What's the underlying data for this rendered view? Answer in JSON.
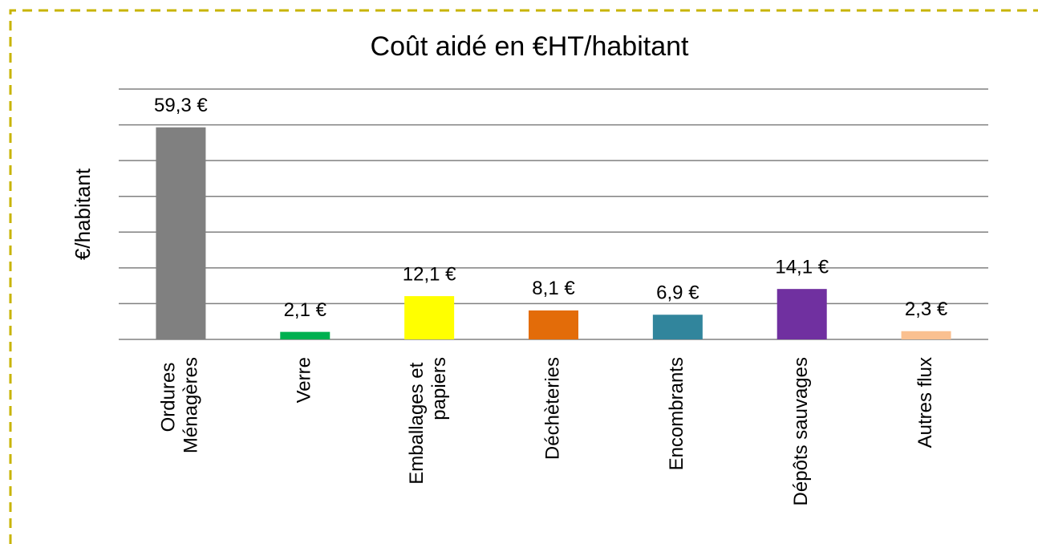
{
  "chart_data": {
    "type": "bar",
    "title": "Coût aidé en €HT/habitant",
    "y_label": "€/habitant",
    "categories": [
      "Ordures Ménagères",
      "Verre",
      "Emballages et papiers",
      "Déchèteries",
      "Encombrants",
      "Dépôts sauvages",
      "Autres flux"
    ],
    "values": [
      59.3,
      2.1,
      12.1,
      8.1,
      6.9,
      14.1,
      2.3
    ],
    "value_labels": [
      "59,3 €",
      "2,1 €",
      "12,1 €",
      "8,1 €",
      "6,9 €",
      "14,1 €",
      "2,3 €"
    ],
    "colors": [
      "#808080",
      "#00b050",
      "#ffff00",
      "#e36c09",
      "#31859c",
      "#7030a0",
      "#fac090"
    ],
    "ylim": [
      0,
      70
    ],
    "yticks": [
      0,
      10,
      20,
      30,
      40,
      50,
      60,
      70
    ],
    "grid": true
  }
}
